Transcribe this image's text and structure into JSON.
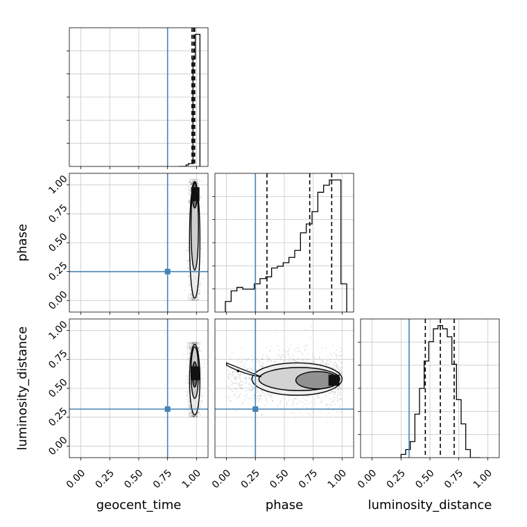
{
  "chart_data": {
    "type": "corner",
    "parameters": [
      "geocent_time",
      "phase",
      "luminosity_distance"
    ],
    "truths": {
      "geocent_time": 0.75,
      "phase": 0.25,
      "luminosity_distance": 0.32
    },
    "truth_color": "#4682b4",
    "ticks": [
      "0.00",
      "0.25",
      "0.50",
      "0.75",
      "1.00"
    ],
    "range": [
      -0.1,
      1.1
    ],
    "grid": true,
    "histograms": [
      {
        "parameter": "geocent_time",
        "bin_edges": [
          0.85,
          0.87,
          0.89,
          0.91,
          0.93,
          0.95,
          0.97,
          0.99,
          1.01,
          1.03
        ],
        "values": [
          0,
          0,
          0,
          0.01,
          0.02,
          0.02,
          0.75,
          0.92,
          0.92
        ],
        "quantiles": [
          0.961,
          0.974,
          0.985
        ]
      },
      {
        "parameter": "phase",
        "bin_edges": [
          -0.01,
          0.04,
          0.09,
          0.14,
          0.19,
          0.24,
          0.29,
          0.34,
          0.39,
          0.44,
          0.49,
          0.54,
          0.59,
          0.64,
          0.69,
          0.74,
          0.79,
          0.84,
          0.89,
          0.94,
          0.99,
          1.04
        ],
        "values": [
          0.06,
          0.12,
          0.14,
          0.13,
          0.13,
          0.16,
          0.19,
          0.2,
          0.25,
          0.26,
          0.28,
          0.31,
          0.35,
          0.45,
          0.5,
          0.57,
          0.68,
          0.72,
          0.75,
          0.75,
          0.16
        ],
        "quantiles": [
          0.35,
          0.72,
          0.91
        ]
      },
      {
        "parameter": "luminosity_distance",
        "bin_edges": [
          0.25,
          0.29,
          0.33,
          0.37,
          0.41,
          0.45,
          0.49,
          0.53,
          0.57,
          0.61,
          0.65,
          0.69,
          0.73,
          0.77,
          0.81,
          0.85,
          0.89,
          0.93
        ],
        "values": [
          0.02,
          0.05,
          0.1,
          0.27,
          0.43,
          0.6,
          0.72,
          0.8,
          0.82,
          0.8,
          0.75,
          0.58,
          0.36,
          0.21,
          0.05,
          0,
          0
        ],
        "quantiles": [
          0.46,
          0.59,
          0.71
        ]
      }
    ],
    "joint_plots": [
      {
        "x": "geocent_time",
        "y": "phase",
        "point_cloud": {
          "x_center": 0.98,
          "x_spread": 0.04,
          "y_range": [
            0,
            1.05
          ]
        },
        "density_peak": {
          "x": 0.99,
          "y": 0.92
        }
      },
      {
        "x": "geocent_time",
        "y": "luminosity_distance",
        "point_cloud": {
          "x_center": 0.98,
          "x_spread": 0.04,
          "y_range": [
            0.25,
            0.9
          ]
        },
        "density_peak": {
          "x": 0.99,
          "y": 0.63
        }
      },
      {
        "x": "phase",
        "y": "luminosity_distance",
        "point_cloud": {
          "x_range": [
            0,
            1
          ],
          "y_range": [
            0.3,
            0.85
          ]
        },
        "density_peak": {
          "x": 0.93,
          "y": 0.57
        },
        "marker": {
          "x": 0.1,
          "y": 0.65
        }
      }
    ]
  }
}
